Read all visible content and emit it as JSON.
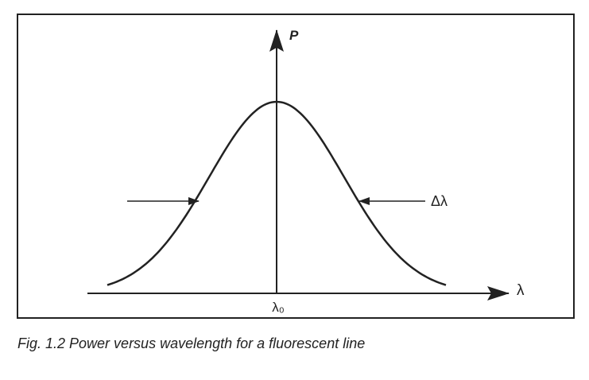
{
  "diagram": {
    "y_axis_label": "P",
    "x_axis_label": "λ",
    "center_label": "λ₀",
    "width_label": "Δλ"
  },
  "caption": "Fig. 1.2  Power versus wavelength for a fluorescent line"
}
